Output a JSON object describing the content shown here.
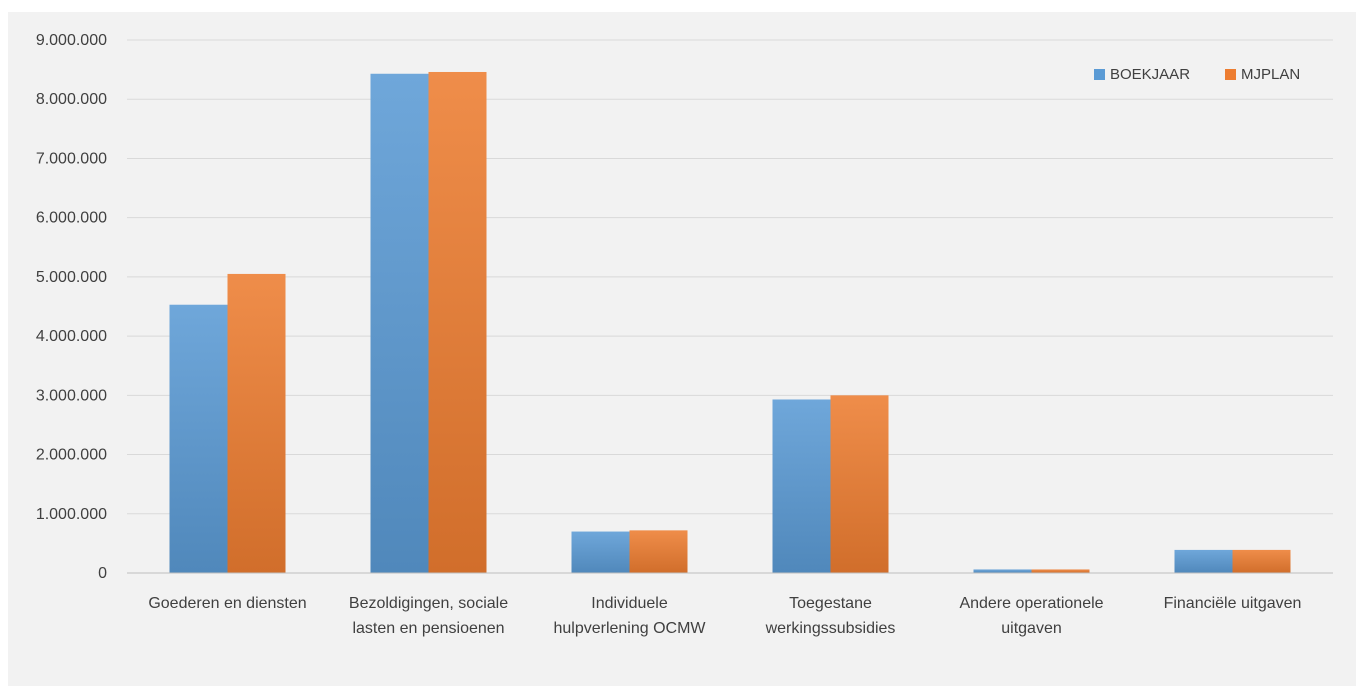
{
  "chart_data": {
    "type": "bar",
    "title": "",
    "xlabel": "",
    "ylabel": "",
    "categories": [
      [
        "Goederen en diensten"
      ],
      [
        "Bezoldigingen, sociale",
        "lasten en pensioenen"
      ],
      [
        "Individuele",
        "hulpverlening OCMW"
      ],
      [
        "Toegestane",
        "werkingssubsidies"
      ],
      [
        "Andere operationele",
        "uitgaven"
      ],
      [
        "Financiële uitgaven"
      ]
    ],
    "series": [
      {
        "name": "BOEKJAAR",
        "color": "#5b9bd5",
        "values": [
          4530000,
          8430000,
          700000,
          2930000,
          60000,
          390000
        ]
      },
      {
        "name": "MJPLAN",
        "color": "#ed7d31",
        "values": [
          5050000,
          8460000,
          720000,
          3000000,
          60000,
          390000
        ]
      }
    ],
    "ylim": [
      0,
      9000000
    ],
    "yticks": [
      {
        "value": 0,
        "label": "0"
      },
      {
        "value": 1000000,
        "label": "1.000.000"
      },
      {
        "value": 2000000,
        "label": "2.000.000"
      },
      {
        "value": 3000000,
        "label": "3.000.000"
      },
      {
        "value": 4000000,
        "label": "4.000.000"
      },
      {
        "value": 5000000,
        "label": "5.000.000"
      },
      {
        "value": 6000000,
        "label": "6.000.000"
      },
      {
        "value": 7000000,
        "label": "7.000.000"
      },
      {
        "value": 8000000,
        "label": "8.000.000"
      },
      {
        "value": 9000000,
        "label": "9.000.000"
      }
    ],
    "grid": true,
    "legend_position": "top-right"
  }
}
